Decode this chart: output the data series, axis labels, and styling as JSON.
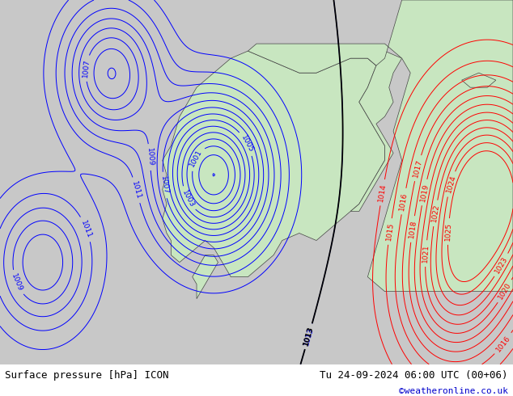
{
  "title_left": "Surface pressure [hPa] ICON",
  "title_right": "Tu 24-09-2024 06:00 UTC (00+06)",
  "credit": "©weatheronline.co.uk",
  "bg_color": "#c8c8c8",
  "land_color": "#c8e6c0",
  "blue_isobar_color": "#0000ff",
  "red_isobar_color": "#ff0000",
  "black_isobar_color": "#000000",
  "label_fontsize": 6.5,
  "footer_fontsize": 9,
  "credit_fontsize": 8,
  "credit_color": "#0000cc"
}
